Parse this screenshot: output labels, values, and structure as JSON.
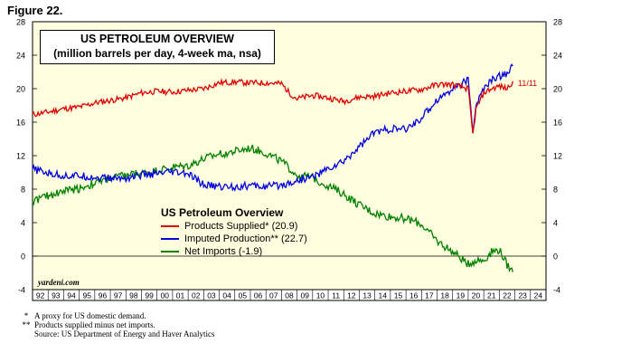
{
  "figure_label": "Figure 22.",
  "source_mark": "yardeni.com",
  "notes": [
    {
      "marker": "*",
      "text": "A proxy for US domestic demand."
    },
    {
      "marker": "**",
      "text": "Products supplied minus net imports."
    }
  ],
  "source": "Source: US Department of Energy and Haver Analytics",
  "colors": {
    "background": "#ffffe0",
    "red": "#e00000",
    "blue": "#0000e0",
    "green": "#008000"
  },
  "chart_data": {
    "type": "line",
    "title": "US PETROLEUM OVERVIEW",
    "subtitle": "(million barrels per day, 4-week ma, nsa)",
    "legend_title": "US Petroleum Overview",
    "legend_position": "bottom-left",
    "end_label": "11/11",
    "ylim": [
      -4,
      28
    ],
    "yticks": [
      -4,
      0,
      4,
      8,
      12,
      16,
      20,
      24,
      28
    ],
    "xlim": [
      1992,
      2025
    ],
    "xtick_labels": [
      "92",
      "93",
      "94",
      "95",
      "96",
      "97",
      "98",
      "99",
      "00",
      "01",
      "02",
      "03",
      "04",
      "05",
      "06",
      "07",
      "08",
      "09",
      "10",
      "11",
      "12",
      "13",
      "14",
      "15",
      "16",
      "17",
      "18",
      "19",
      "20",
      "21",
      "22",
      "23",
      "24"
    ],
    "series": [
      {
        "name": "Products Supplied* (20.9)",
        "color": "red",
        "x": [
          1992,
          1993,
          1994,
          1995,
          1996,
          1997,
          1998,
          1999,
          2000,
          2001,
          2002,
          2003,
          2004,
          2005,
          2006,
          2007,
          2008,
          2008.5,
          2009,
          2010,
          2011,
          2012,
          2013,
          2014,
          2015,
          2016,
          2017,
          2018,
          2019,
          2020,
          2020.3,
          2020.5,
          2021,
          2021.5,
          2022,
          2022.5,
          2022.87
        ],
        "y": [
          16.9,
          17.2,
          17.6,
          17.8,
          18.3,
          18.6,
          18.9,
          19.5,
          19.7,
          19.6,
          19.8,
          20.0,
          20.7,
          20.8,
          20.7,
          20.7,
          20.6,
          19.5,
          18.8,
          19.2,
          18.9,
          18.5,
          19.0,
          19.1,
          19.5,
          19.7,
          19.9,
          20.5,
          20.5,
          20.0,
          14.5,
          17.5,
          19.5,
          20.0,
          20.3,
          20.0,
          20.9
        ]
      },
      {
        "name": "Imputed Production** (22.7)",
        "color": "blue",
        "x": [
          1992,
          1993,
          1994,
          1995,
          1996,
          1997,
          1998,
          1999,
          2000,
          2001,
          2002,
          2003,
          2004,
          2005,
          2006,
          2007,
          2008,
          2009,
          2010,
          2011,
          2012,
          2013,
          2014,
          2015,
          2016,
          2017,
          2018,
          2019,
          2020,
          2020.3,
          2020.5,
          2021,
          2021.5,
          2022,
          2022.5,
          2022.87
        ],
        "y": [
          10.4,
          9.9,
          9.6,
          9.6,
          9.4,
          9.3,
          9.3,
          9.7,
          9.8,
          10.0,
          9.8,
          8.5,
          8.3,
          8.3,
          8.4,
          8.3,
          8.5,
          9.0,
          9.5,
          10.4,
          11.3,
          13.1,
          14.8,
          15.2,
          15.1,
          16.5,
          18.7,
          20.0,
          21.0,
          15.0,
          18.0,
          20.0,
          21.0,
          21.5,
          21.8,
          22.7
        ]
      },
      {
        "name": "Net Imports (-1.9)",
        "color": "green",
        "x": [
          1992,
          1993,
          1994,
          1995,
          1996,
          1997,
          1998,
          1999,
          2000,
          2001,
          2002,
          2003,
          2004,
          2005,
          2006,
          2007,
          2008,
          2009,
          2010,
          2011,
          2012,
          2013,
          2014,
          2015,
          2016,
          2017,
          2018,
          2019,
          2020,
          2020.5,
          2021,
          2021.5,
          2022,
          2022.5,
          2022.87
        ],
        "y": [
          6.6,
          7.2,
          7.8,
          8.1,
          8.7,
          9.3,
          9.7,
          9.9,
          10.2,
          10.6,
          10.8,
          11.6,
          12.2,
          12.5,
          12.9,
          12.3,
          11.3,
          9.7,
          9.4,
          8.4,
          7.4,
          6.1,
          5.1,
          4.7,
          4.5,
          3.8,
          1.8,
          0.5,
          -0.9,
          -0.5,
          -0.5,
          0.5,
          0.8,
          -1.0,
          -1.9
        ]
      }
    ]
  }
}
